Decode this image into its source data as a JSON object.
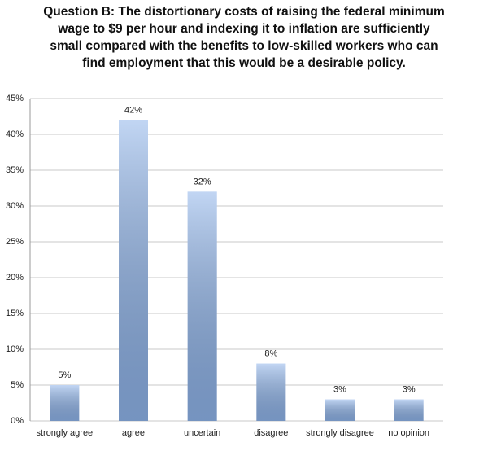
{
  "chart_data": {
    "type": "bar",
    "title": "Question B: The distortionary costs of raising the federal minimum wage to $9 per hour and indexing it to inflation are sufficiently small compared with the benefits to low-skilled workers who can find employment that this would be a desirable policy.",
    "categories": [
      "strongly agree",
      "agree",
      "uncertain",
      "disagree",
      "strongly disagree",
      "no opinion"
    ],
    "values": [
      5,
      42,
      32,
      8,
      3,
      3
    ],
    "value_labels": [
      "5%",
      "42%",
      "32%",
      "8%",
      "3%",
      "3%"
    ],
    "color": "#8fb4ea",
    "ylim": [
      0,
      45
    ],
    "yticks": [
      {
        "value": 0,
        "label": "0%"
      },
      {
        "value": 5,
        "label": "5%"
      },
      {
        "value": 10,
        "label": "10%"
      },
      {
        "value": 15,
        "label": "15%"
      },
      {
        "value": 20,
        "label": "20%"
      },
      {
        "value": 25,
        "label": "25%"
      },
      {
        "value": 30,
        "label": "30%"
      },
      {
        "value": 35,
        "label": "35%"
      },
      {
        "value": 40,
        "label": "40%"
      },
      {
        "value": 45,
        "label": "45%"
      }
    ],
    "grid": true
  }
}
